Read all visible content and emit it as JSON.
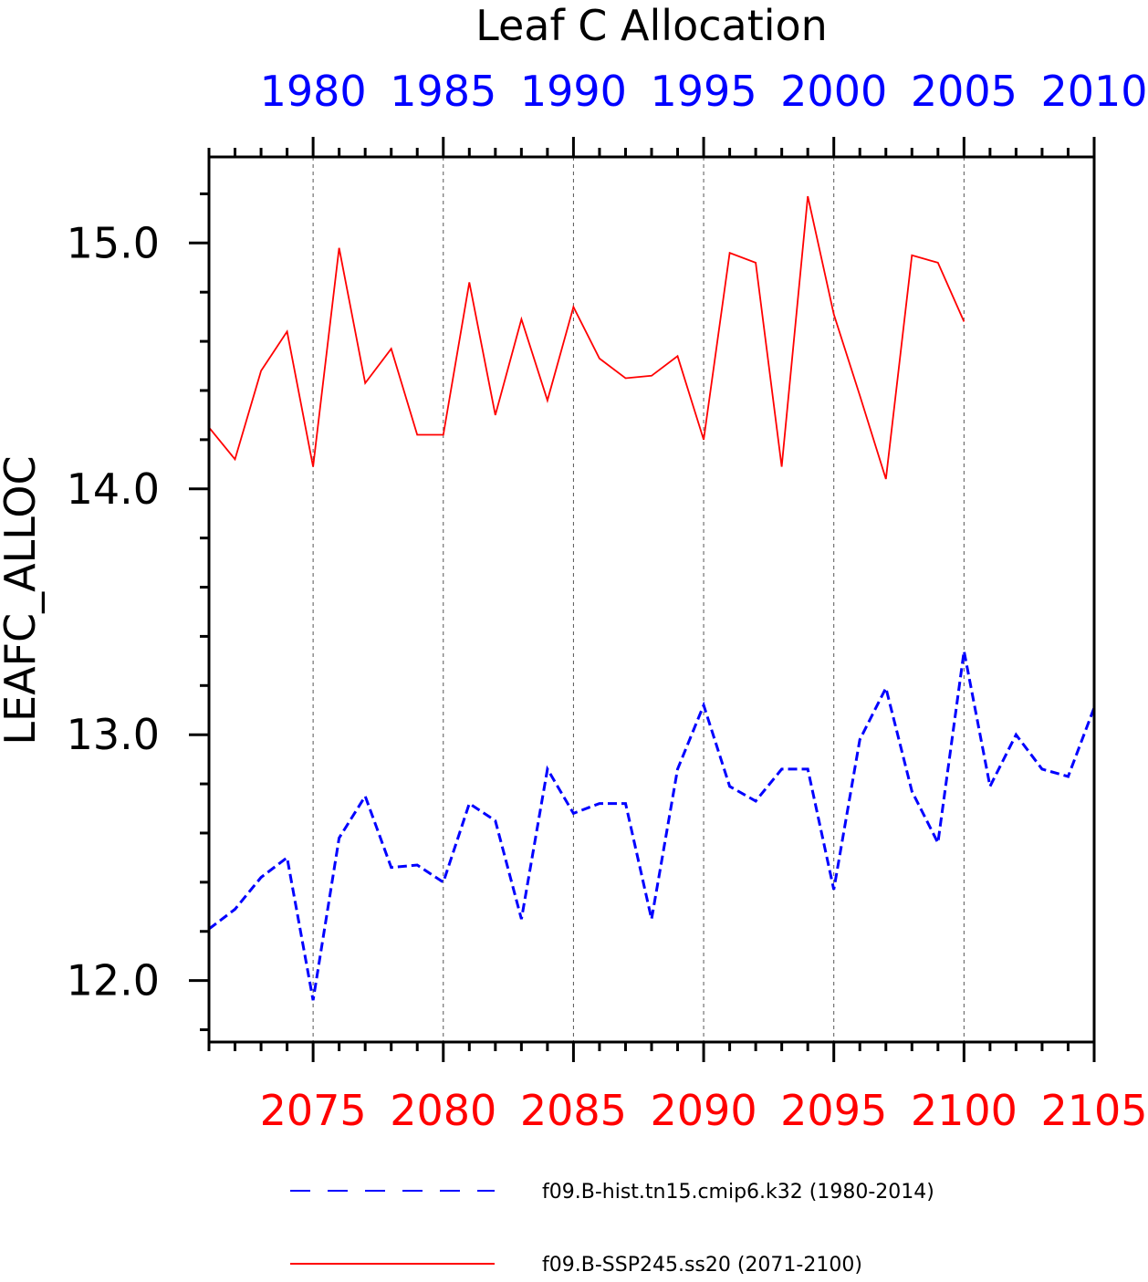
{
  "chart_data": {
    "type": "line",
    "title": "Leaf C Allocation",
    "ylabel": "LEAFC_ALLOC",
    "ylim": [
      11.75,
      15.35
    ],
    "y_major_ticks": [
      12.0,
      13.0,
      14.0,
      15.0
    ],
    "y_tick_labels": [
      "12.0",
      "13.0",
      "14.0",
      "15.0"
    ],
    "y_minor_step": 0.2,
    "grid": "vertical dashed lines at labeled bottom-axis ticks",
    "legend_position": "bottom",
    "top_axis": {
      "color": "#0000ff",
      "range": [
        1976,
        2010
      ],
      "ticks": [
        1980,
        1985,
        1990,
        1995,
        2000,
        2005,
        2010
      ],
      "tick_labels": [
        "1980",
        "1985",
        "1990",
        "1995",
        "2000",
        "2005",
        "2010"
      ]
    },
    "bottom_axis": {
      "color": "#ff0000",
      "range": [
        2071,
        2105
      ],
      "ticks": [
        2075,
        2080,
        2085,
        2090,
        2095,
        2100,
        2105
      ],
      "tick_labels": [
        "2075",
        "2080",
        "2085",
        "2090",
        "2095",
        "2100",
        "2105"
      ]
    },
    "series": [
      {
        "name": "f09.B-hist.tn15.cmip6.k32 (1980-2014)",
        "color": "#0000ff",
        "style": "dashed",
        "x": [
          2071,
          2072,
          2073,
          2074,
          2075,
          2076,
          2077,
          2078,
          2079,
          2080,
          2081,
          2082,
          2083,
          2084,
          2085,
          2086,
          2087,
          2088,
          2089,
          2090,
          2091,
          2092,
          2093,
          2094,
          2095,
          2096,
          2097,
          2098,
          2099,
          2100,
          2101,
          2102,
          2103,
          2104,
          2105
        ],
        "values": [
          12.21,
          12.29,
          12.42,
          12.5,
          11.92,
          12.58,
          12.75,
          12.46,
          12.47,
          12.4,
          12.72,
          12.65,
          12.25,
          12.86,
          12.68,
          12.72,
          12.72,
          12.25,
          12.86,
          13.12,
          12.79,
          12.73,
          12.86,
          12.86,
          12.37,
          12.98,
          13.19,
          12.77,
          12.56,
          13.34,
          12.79,
          13.0,
          12.86,
          12.83,
          13.11
        ]
      },
      {
        "name": "f09.B-SSP245.ss20 (2071-2100)",
        "color": "#ff0000",
        "style": "solid",
        "x": [
          2071,
          2072,
          2073,
          2074,
          2075,
          2076,
          2077,
          2078,
          2079,
          2080,
          2081,
          2082,
          2083,
          2084,
          2085,
          2086,
          2087,
          2088,
          2089,
          2090,
          2091,
          2092,
          2093,
          2094,
          2095,
          2096,
          2097,
          2098,
          2099,
          2100
        ],
        "values": [
          14.25,
          14.12,
          14.48,
          14.64,
          14.09,
          14.98,
          14.43,
          14.57,
          14.22,
          14.22,
          14.84,
          14.3,
          14.69,
          14.36,
          14.74,
          14.53,
          14.45,
          14.46,
          14.54,
          14.2,
          14.96,
          14.92,
          14.09,
          15.19,
          14.71,
          14.38,
          14.04,
          14.95,
          14.92,
          14.68
        ]
      }
    ]
  }
}
